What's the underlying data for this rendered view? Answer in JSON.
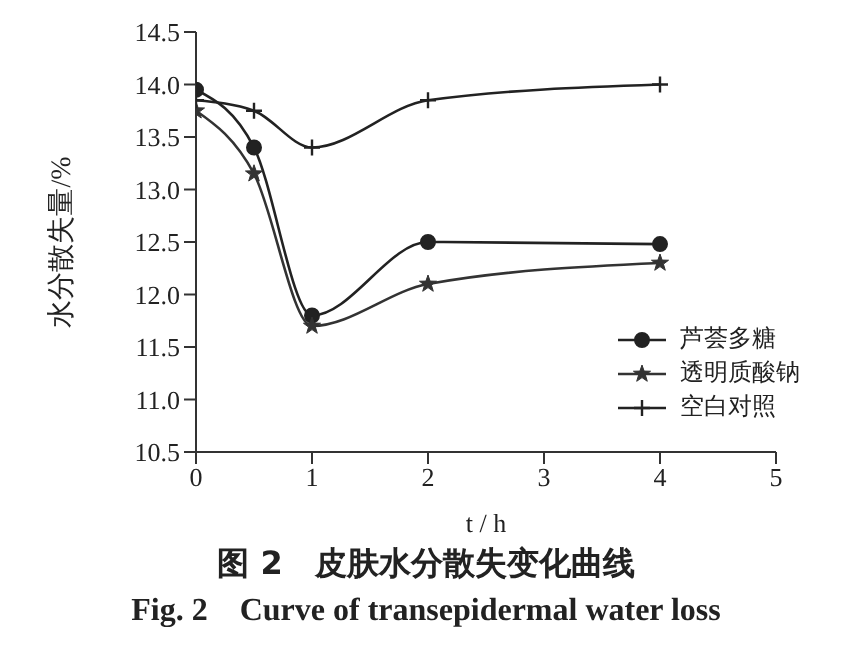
{
  "chart_data": {
    "type": "line",
    "title": "图 2　皮肤水分散失变化曲线",
    "subtitle": "Fig. 2　Curve of transepidermal water loss",
    "xlabel": "t / h",
    "ylabel": "水分散失量/%",
    "x": [
      0,
      0.5,
      1,
      2,
      4
    ],
    "series": [
      {
        "name": "芦荟多糖",
        "color": "#222222",
        "marker": "circle",
        "values": [
          13.95,
          13.4,
          11.8,
          12.5,
          12.48
        ]
      },
      {
        "name": "透明质酸钠",
        "color": "#333333",
        "marker": "star",
        "values": [
          13.75,
          13.15,
          11.7,
          12.1,
          12.3
        ]
      },
      {
        "name": "空白对照",
        "color": "#222222",
        "marker": "cross",
        "values": [
          13.85,
          13.75,
          13.4,
          13.85,
          14.0
        ]
      }
    ],
    "xlim": [
      0,
      5
    ],
    "xticks": [
      0,
      1,
      2,
      3,
      4,
      5
    ],
    "ylim": [
      10.5,
      14.5
    ],
    "yticks": [
      10.5,
      {
        "value": 11,
        "label": "11.0"
      },
      11.5,
      {
        "value": 12,
        "label": "12.0"
      },
      12.5,
      {
        "value": 13,
        "label": "13.0"
      },
      13.5,
      {
        "value": 14,
        "label": "14.0"
      },
      14.5
    ],
    "grid": false,
    "legend": "right"
  }
}
